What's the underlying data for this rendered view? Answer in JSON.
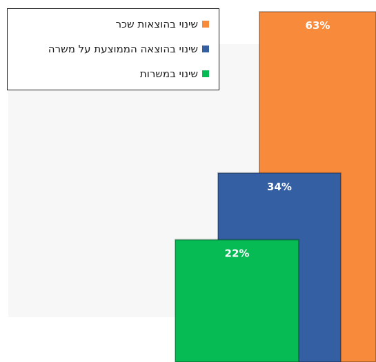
{
  "chart_data": {
    "type": "bar",
    "title": "",
    "xlabel": "",
    "ylabel": "",
    "ylim": [
      0,
      63
    ],
    "legend_position": "top-left",
    "grid": false,
    "series": [
      {
        "name": "שינוי בהוצאות שכר",
        "value": 63,
        "label": "63%",
        "color": "#f78a3b"
      },
      {
        "name": "שינוי בהוצאה הממוצעת על משרה",
        "value": 34,
        "label": "34%",
        "color": "#355fa3"
      },
      {
        "name": "שינוי במשרות",
        "value": 22,
        "label": "22%",
        "color": "#06bb54"
      }
    ]
  }
}
